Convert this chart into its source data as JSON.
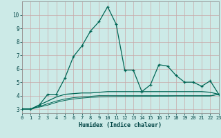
{
  "xlabel": "Humidex (Indice chaleur)",
  "background_color": "#cceae7",
  "grid_color": "#b0d8d4",
  "line_color": "#006655",
  "x_values": [
    0,
    1,
    2,
    3,
    4,
    5,
    6,
    7,
    8,
    9,
    10,
    11,
    12,
    13,
    14,
    15,
    16,
    17,
    18,
    19,
    20,
    21,
    22,
    23
  ],
  "main_y": [
    3.0,
    3.0,
    3.3,
    4.1,
    4.1,
    5.3,
    6.9,
    7.7,
    8.8,
    9.5,
    10.6,
    9.3,
    5.9,
    5.9,
    4.3,
    4.8,
    6.3,
    6.2,
    5.5,
    5.0,
    5.0,
    4.7,
    5.1,
    4.1
  ],
  "smooth1_y": [
    3.0,
    3.0,
    3.3,
    3.6,
    3.9,
    4.1,
    4.15,
    4.2,
    4.2,
    4.25,
    4.3,
    4.3,
    4.3,
    4.3,
    4.3,
    4.3,
    4.3,
    4.3,
    4.3,
    4.3,
    4.3,
    4.3,
    4.25,
    4.1
  ],
  "smooth2_y": [
    3.0,
    3.0,
    3.2,
    3.4,
    3.6,
    3.75,
    3.85,
    3.9,
    3.95,
    4.0,
    4.0,
    4.0,
    4.0,
    4.0,
    4.0,
    4.0,
    4.0,
    4.0,
    4.0,
    4.0,
    4.0,
    4.0,
    4.0,
    4.1
  ],
  "smooth3_y": [
    3.0,
    3.0,
    3.15,
    3.3,
    3.5,
    3.65,
    3.75,
    3.82,
    3.87,
    3.9,
    3.92,
    3.93,
    3.94,
    3.94,
    3.95,
    3.95,
    3.96,
    3.96,
    3.97,
    3.97,
    3.97,
    3.97,
    3.97,
    4.1
  ],
  "xlim": [
    0,
    23
  ],
  "ylim": [
    2.7,
    11.0
  ],
  "yticks": [
    3,
    4,
    5,
    6,
    7,
    8,
    9,
    10
  ],
  "xticks": [
    0,
    1,
    2,
    3,
    4,
    5,
    6,
    7,
    8,
    9,
    10,
    11,
    12,
    13,
    14,
    15,
    16,
    17,
    18,
    19,
    20,
    21,
    22,
    23
  ]
}
